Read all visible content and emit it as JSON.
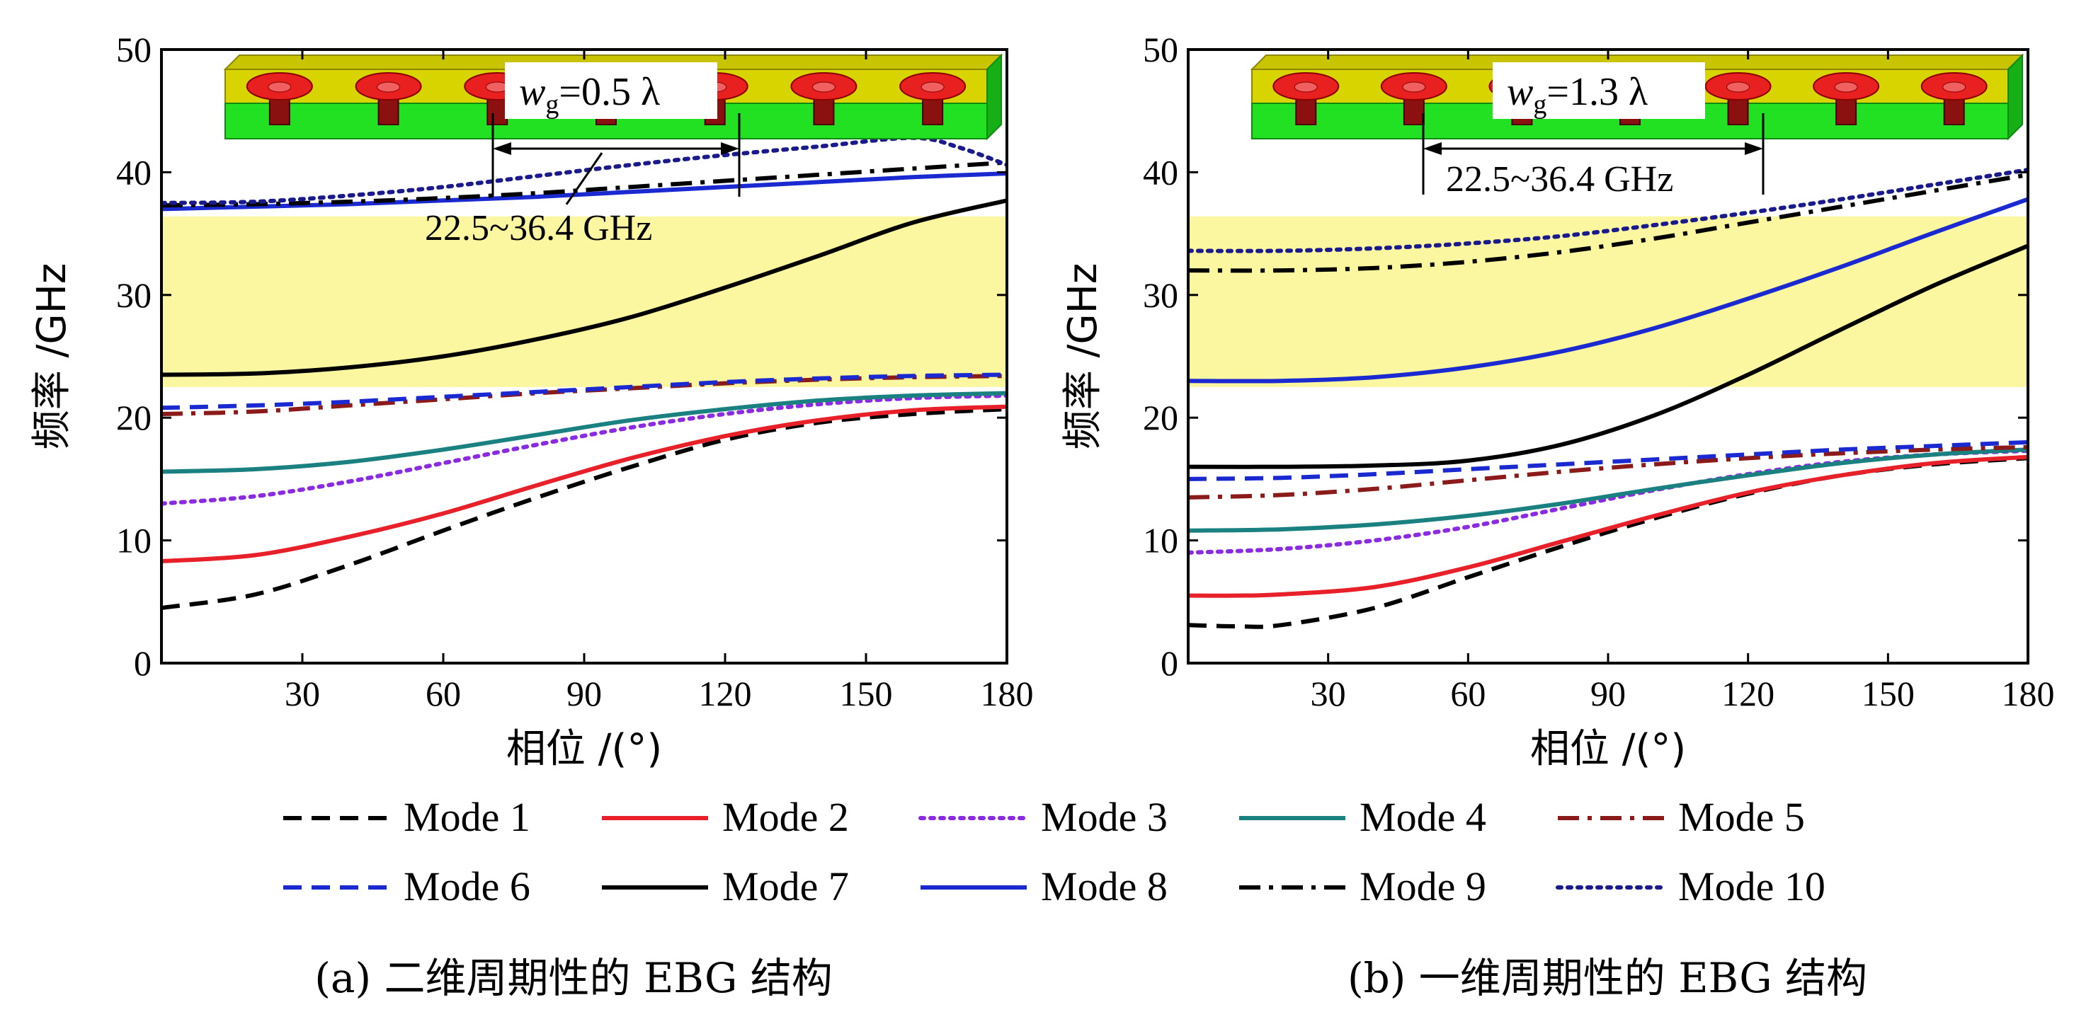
{
  "colors": {
    "mode1": "#000000",
    "mode2": "#e8202a",
    "mode3": "#8a2be2",
    "mode4": "#1b8080",
    "mode5": "#8b1a1a",
    "mode6": "#1a2ad0",
    "mode7": "#000000",
    "mode8": "#1a2ad0",
    "mode9": "#000000",
    "mode10": "#1a1a8c",
    "band_highlight": "#fbf6a0",
    "substrate_green": "#22e022",
    "substrate_yellow": "#d8d400",
    "patch_red": "#e82020",
    "via_dark": "#8b1010"
  },
  "legend": [
    {
      "label": "Mode 1",
      "style": "dashed",
      "color": "#000000"
    },
    {
      "label": "Mode 2",
      "style": "solid",
      "color": "#e8202a"
    },
    {
      "label": "Mode 3",
      "style": "dotted",
      "color": "#8a2be2"
    },
    {
      "label": "Mode 4",
      "style": "solid",
      "color": "#1b8080"
    },
    {
      "label": "Mode 5",
      "style": "dashdot",
      "color": "#8b1a1a"
    },
    {
      "label": "Mode 6",
      "style": "dashed",
      "color": "#1a2ad0"
    },
    {
      "label": "Mode 7",
      "style": "solid",
      "color": "#000000"
    },
    {
      "label": "Mode 8",
      "style": "solid",
      "color": "#1a2ad0"
    },
    {
      "label": "Mode 9",
      "style": "dashdot",
      "color": "#000000"
    },
    {
      "label": "Mode 10",
      "style": "dotted",
      "color": "#1a1a8c"
    }
  ],
  "chart_data": [
    {
      "type": "line",
      "caption": "(a) 二维周期性的 EBG 结构",
      "xlabel": "相位 /(°)",
      "ylabel": "频率 /GHz",
      "xlim": [
        0,
        180
      ],
      "ylim": [
        0,
        50
      ],
      "xticks": [
        "30",
        "60",
        "90",
        "120",
        "150",
        "180"
      ],
      "yticks": [
        "0",
        "10",
        "20",
        "30",
        "40",
        "50"
      ],
      "band": [
        22.5,
        36.4
      ],
      "band_label": "22.5~36.4 GHz",
      "wg_label": "=0.5 λ",
      "wg_symbol": "w",
      "wg_subscript": "g",
      "series": [
        {
          "name": "Mode 1",
          "x": [
            0,
            20,
            40,
            60,
            80,
            100,
            120,
            140,
            160,
            180
          ],
          "y": [
            4.5,
            5.6,
            8.0,
            10.8,
            13.5,
            16.0,
            18.2,
            19.6,
            20.3,
            20.7
          ]
        },
        {
          "name": "Mode 2",
          "x": [
            0,
            20,
            40,
            60,
            80,
            100,
            120,
            140,
            160,
            180
          ],
          "y": [
            8.3,
            8.8,
            10.3,
            12.2,
            14.5,
            16.7,
            18.5,
            19.8,
            20.6,
            20.9
          ]
        },
        {
          "name": "Mode 3",
          "x": [
            0,
            20,
            40,
            60,
            80,
            100,
            120,
            140,
            160,
            180
          ],
          "y": [
            13.0,
            13.6,
            14.8,
            16.3,
            17.8,
            19.2,
            20.3,
            21.1,
            21.6,
            21.8
          ]
        },
        {
          "name": "Mode 4",
          "x": [
            0,
            20,
            40,
            60,
            80,
            100,
            120,
            140,
            160,
            180
          ],
          "y": [
            15.6,
            15.8,
            16.4,
            17.4,
            18.6,
            19.8,
            20.7,
            21.4,
            21.8,
            22.0
          ]
        },
        {
          "name": "Mode 5",
          "x": [
            0,
            20,
            40,
            60,
            80,
            100,
            120,
            140,
            160,
            180
          ],
          "y": [
            20.3,
            20.5,
            21.0,
            21.5,
            22.0,
            22.4,
            22.8,
            23.1,
            23.3,
            23.4
          ]
        },
        {
          "name": "Mode 6",
          "x": [
            0,
            20,
            40,
            60,
            80,
            100,
            120,
            140,
            160,
            180
          ],
          "y": [
            20.8,
            21.0,
            21.3,
            21.7,
            22.1,
            22.5,
            22.9,
            23.2,
            23.4,
            23.5
          ]
        },
        {
          "name": "Mode 7",
          "x": [
            0,
            20,
            40,
            60,
            80,
            100,
            120,
            140,
            160,
            180
          ],
          "y": [
            23.5,
            23.6,
            24.1,
            25.0,
            26.4,
            28.2,
            30.6,
            33.2,
            35.9,
            37.7
          ]
        },
        {
          "name": "Mode 8",
          "x": [
            0,
            20,
            40,
            60,
            80,
            100,
            120,
            140,
            160,
            180
          ],
          "y": [
            37.0,
            37.2,
            37.4,
            37.7,
            38.0,
            38.4,
            38.8,
            39.2,
            39.6,
            39.9
          ]
        },
        {
          "name": "Mode 9",
          "x": [
            0,
            20,
            40,
            60,
            80,
            100,
            120,
            140,
            160,
            180
          ],
          "y": [
            37.3,
            37.4,
            37.6,
            37.9,
            38.3,
            38.8,
            39.3,
            39.8,
            40.3,
            40.8
          ]
        },
        {
          "name": "Mode 10",
          "x": [
            0,
            20,
            40,
            60,
            80,
            100,
            120,
            140,
            160,
            170,
            180
          ],
          "y": [
            37.5,
            37.6,
            38.1,
            38.8,
            39.7,
            40.6,
            41.4,
            42.1,
            42.8,
            42.0,
            40.6
          ]
        }
      ]
    },
    {
      "type": "line",
      "caption": "(b) 一维周期性的 EBG 结构",
      "xlabel": "相位 /(°)",
      "ylabel": "频率 /GHz",
      "xlim": [
        0,
        180
      ],
      "ylim": [
        0,
        50
      ],
      "xticks": [
        "30",
        "60",
        "90",
        "120",
        "150",
        "180"
      ],
      "yticks": [
        "0",
        "10",
        "20",
        "30",
        "40",
        "50"
      ],
      "band": [
        22.5,
        36.4
      ],
      "band_label": "22.5~36.4 GHz",
      "wg_label": "=1.3 λ",
      "wg_symbol": "w",
      "wg_subscript": "g",
      "series": [
        {
          "name": "Mode 1",
          "x": [
            0,
            10,
            20,
            40,
            60,
            80,
            100,
            120,
            140,
            160,
            180
          ],
          "y": [
            3.1,
            3.0,
            3.1,
            4.5,
            7.0,
            9.5,
            11.8,
            13.8,
            15.3,
            16.2,
            16.7
          ]
        },
        {
          "name": "Mode 2",
          "x": [
            0,
            10,
            20,
            40,
            60,
            80,
            100,
            120,
            140,
            160,
            180
          ],
          "y": [
            5.5,
            5.5,
            5.6,
            6.2,
            7.8,
            9.9,
            12.0,
            13.9,
            15.3,
            16.3,
            16.8
          ]
        },
        {
          "name": "Mode 3",
          "x": [
            0,
            20,
            40,
            60,
            80,
            100,
            120,
            140,
            160,
            180
          ],
          "y": [
            9.0,
            9.3,
            10.0,
            11.1,
            12.6,
            14.1,
            15.4,
            16.4,
            17.0,
            17.3
          ]
        },
        {
          "name": "Mode 4",
          "x": [
            0,
            20,
            40,
            60,
            80,
            100,
            120,
            140,
            160,
            180
          ],
          "y": [
            10.8,
            10.9,
            11.3,
            12.0,
            13.0,
            14.2,
            15.3,
            16.3,
            17.0,
            17.4
          ]
        },
        {
          "name": "Mode 5",
          "x": [
            0,
            20,
            40,
            60,
            80,
            100,
            120,
            140,
            160,
            180
          ],
          "y": [
            13.5,
            13.7,
            14.2,
            14.9,
            15.6,
            16.2,
            16.7,
            17.1,
            17.4,
            17.6
          ]
        },
        {
          "name": "Mode 6",
          "x": [
            0,
            20,
            40,
            60,
            80,
            100,
            120,
            140,
            160,
            180
          ],
          "y": [
            15.0,
            15.1,
            15.4,
            15.8,
            16.2,
            16.6,
            17.0,
            17.4,
            17.7,
            18.0
          ]
        },
        {
          "name": "Mode 7",
          "x": [
            0,
            20,
            40,
            60,
            80,
            100,
            120,
            140,
            160,
            180
          ],
          "y": [
            16.0,
            16.0,
            16.1,
            16.5,
            17.8,
            20.2,
            23.5,
            27.2,
            30.8,
            34.0
          ]
        },
        {
          "name": "Mode 8",
          "x": [
            0,
            20,
            40,
            60,
            80,
            100,
            120,
            140,
            160,
            180
          ],
          "y": [
            23.0,
            23.0,
            23.3,
            24.1,
            25.4,
            27.3,
            29.7,
            32.3,
            35.1,
            37.8
          ]
        },
        {
          "name": "Mode 9",
          "x": [
            0,
            20,
            40,
            60,
            80,
            100,
            120,
            140,
            160,
            180
          ],
          "y": [
            32.0,
            32.0,
            32.2,
            32.7,
            33.5,
            34.6,
            35.9,
            37.2,
            38.5,
            39.8
          ]
        },
        {
          "name": "Mode 10",
          "x": [
            0,
            20,
            40,
            60,
            80,
            100,
            120,
            140,
            160,
            180
          ],
          "y": [
            33.6,
            33.6,
            33.8,
            34.2,
            34.8,
            35.7,
            36.7,
            37.8,
            39.0,
            40.2
          ]
        }
      ]
    }
  ]
}
